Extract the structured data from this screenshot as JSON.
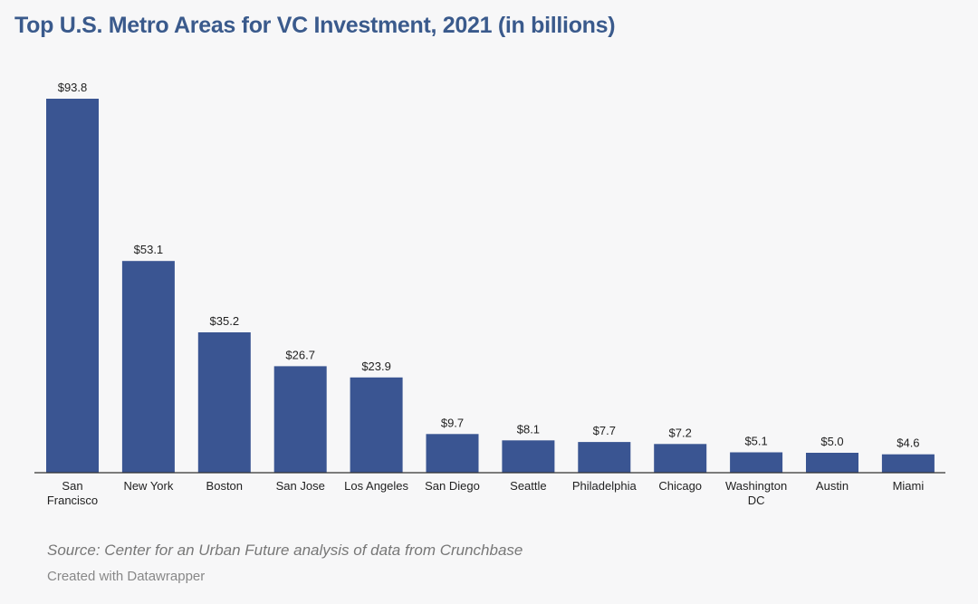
{
  "chart_data": {
    "type": "bar",
    "title": "Top U.S. Metro Areas for VC Investment, 2021 (in billions)",
    "categories": [
      "San Francisco",
      "New York",
      "Boston",
      "San Jose",
      "Los Angeles",
      "San Diego",
      "Seattle",
      "Philadelphia",
      "Chicago",
      "Washington DC",
      "Austin",
      "Miami"
    ],
    "category_lines": [
      [
        "San",
        "Francisco"
      ],
      [
        "New York"
      ],
      [
        "Boston"
      ],
      [
        "San Jose"
      ],
      [
        "Los Angeles"
      ],
      [
        "San Diego"
      ],
      [
        "Seattle"
      ],
      [
        "Philadelphia"
      ],
      [
        "Chicago"
      ],
      [
        "Washington",
        "DC"
      ],
      [
        "Austin"
      ],
      [
        "Miami"
      ]
    ],
    "values": [
      93.8,
      53.1,
      35.2,
      26.7,
      23.9,
      9.7,
      8.1,
      7.7,
      7.2,
      5.1,
      5.0,
      4.6
    ],
    "value_labels": [
      "$93.8",
      "$53.1",
      "$35.2",
      "$26.7",
      "$23.9",
      "$9.7",
      "$8.1",
      "$7.7",
      "$7.2",
      "$5.1",
      "$5.0",
      "$4.6"
    ],
    "ylim": [
      0,
      93.8
    ],
    "bar_color": "#3a5592",
    "grid": false,
    "legend": "none"
  },
  "footer": {
    "source": "Source: Center for an Urban Future analysis of data from Crunchbase",
    "credit": "Created with Datawrapper"
  }
}
